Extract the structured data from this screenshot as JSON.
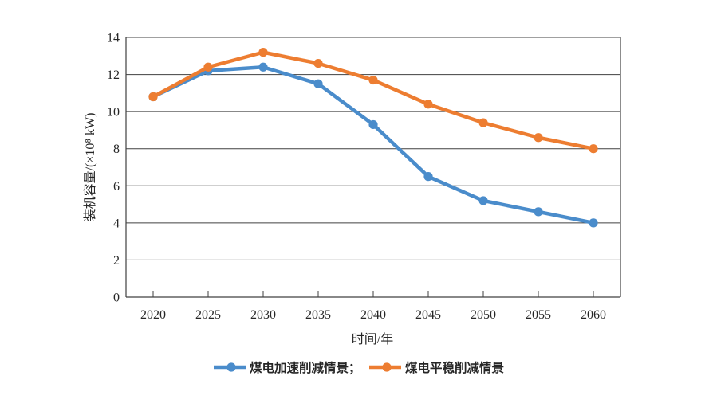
{
  "chart_data": {
    "type": "line",
    "x": [
      2020,
      2025,
      2030,
      2035,
      2040,
      2045,
      2050,
      2055,
      2060
    ],
    "series": [
      {
        "name": "煤电加速削减情景",
        "color": "#4A8CCB",
        "values": [
          10.8,
          12.2,
          12.4,
          11.5,
          9.3,
          6.5,
          5.2,
          4.6,
          4.0
        ]
      },
      {
        "name": "煤电平稳削减情景",
        "color": "#ED7D31",
        "values": [
          10.8,
          12.4,
          13.2,
          12.6,
          11.7,
          10.4,
          9.4,
          8.6,
          8.0
        ]
      }
    ],
    "title": "",
    "xlabel": "时间/年",
    "ylabel": "装机容量/(×10⁸ kW)",
    "ylim": [
      0,
      14
    ],
    "yticks": [
      0,
      2,
      4,
      6,
      8,
      10,
      12,
      14
    ],
    "grid": "horizontal",
    "legend_position": "bottom"
  },
  "legend": {
    "items": [
      {
        "label": "煤电加速削减情景；",
        "color": "#4A8CCB"
      },
      {
        "label": "煤电平稳削减情景",
        "color": "#ED7D31"
      }
    ]
  },
  "colors": {
    "axis": "#404040",
    "text": "#262626",
    "background": "#ffffff"
  }
}
